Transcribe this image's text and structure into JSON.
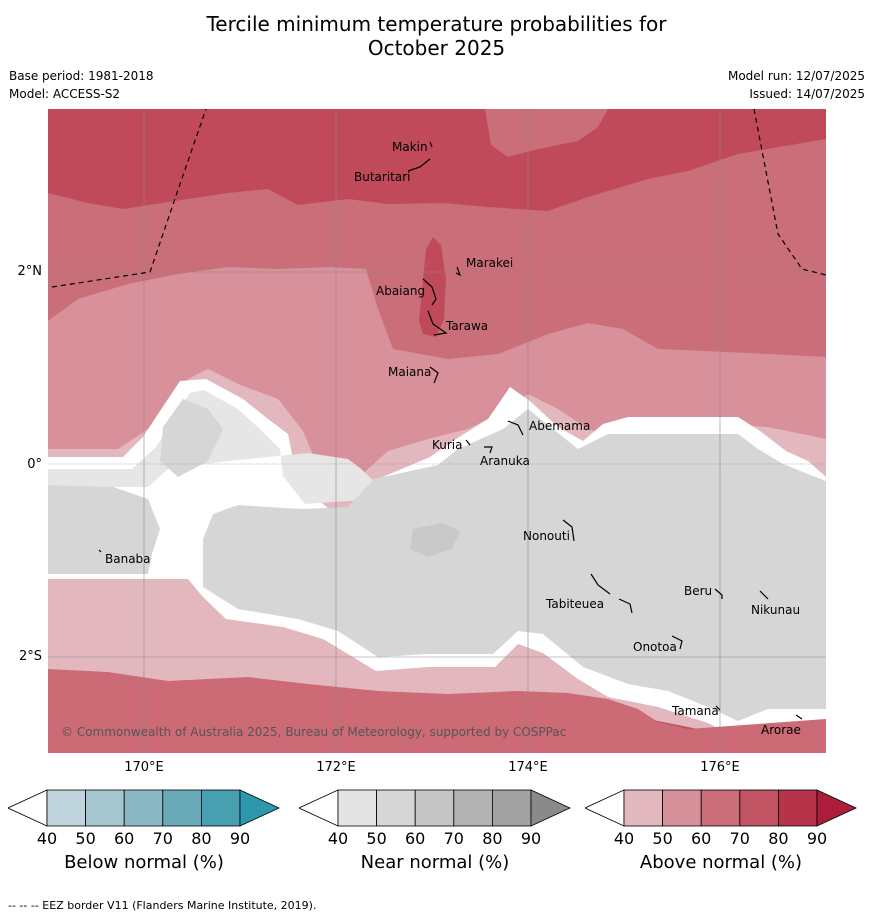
{
  "title_line1": "Tercile minimum temperature probabilities for",
  "title_line2": "October 2025",
  "meta": {
    "base_period": "Base period: 1981-2018",
    "model": "Model: ACCESS-S2",
    "model_run": "Model run: 12/07/2025",
    "issued": "Issued: 14/07/2025"
  },
  "map": {
    "lat_labels": [
      "2°N",
      "0°",
      "2°S"
    ],
    "lon_labels": [
      "170°E",
      "172°E",
      "174°E",
      "176°E"
    ],
    "places": [
      "Makin",
      "Butaritari",
      "Marakei",
      "Abaiang",
      "Tarawa",
      "Maiana",
      "Abemama",
      "Kuria",
      "Aranuka",
      "Nonouti",
      "Banaba",
      "Beru",
      "Tabiteuea",
      "Nikunau",
      "Onotoa",
      "Tamana",
      "Arorae"
    ],
    "copyright": "© Commonwealth of Australia 2025, Bureau of Meteorology, supported by COSPPac"
  },
  "colorbars": [
    {
      "label": "Below normal (%)",
      "ticks": [
        "40",
        "50",
        "60",
        "70",
        "80",
        "90"
      ],
      "colors": [
        "#ffffff",
        "#bfd4dc",
        "#a6c6cf",
        "#8ab8c3",
        "#6aaab9",
        "#479fb0",
        "#2d97ab"
      ]
    },
    {
      "label": "Near normal (%)",
      "ticks": [
        "40",
        "50",
        "60",
        "70",
        "80",
        "90"
      ],
      "colors": [
        "#ffffff",
        "#e4e4e4",
        "#d6d6d6",
        "#c6c6c6",
        "#b3b3b3",
        "#a2a2a2",
        "#8a8a8a"
      ]
    },
    {
      "label": "Above normal (%)",
      "ticks": [
        "40",
        "50",
        "60",
        "70",
        "80",
        "90"
      ],
      "colors": [
        "#ffffff",
        "#e2b8be",
        "#d6909a",
        "#ca6e79",
        "#c05462",
        "#b53449",
        "#ac1d3c"
      ]
    }
  ],
  "footnote": "-- -- -- EEZ border V11 (Flanders Marine Institute, 2019)."
}
